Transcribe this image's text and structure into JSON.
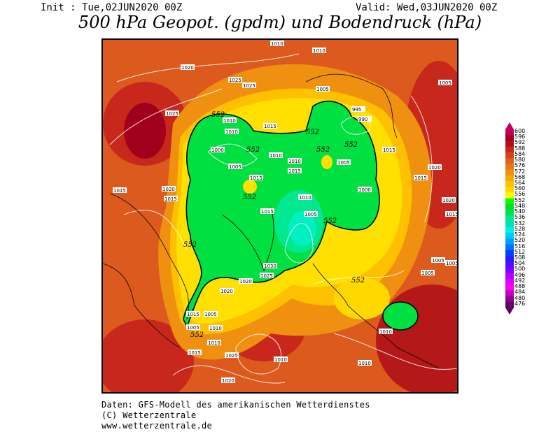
{
  "header": {
    "init": "Init : Tue,02JUN2020 00Z",
    "valid": "Valid: Wed,03JUN2020 00Z",
    "title": "500 hPa Geopot. (gpdm) und Bodendruck (hPa)"
  },
  "colorbar": {
    "labels": [
      "600",
      "596",
      "592",
      "588",
      "584",
      "580",
      "576",
      "572",
      "568",
      "564",
      "560",
      "556",
      "552",
      "548",
      "540",
      "536",
      "532",
      "528",
      "524",
      "520",
      "516",
      "512",
      "508",
      "504",
      "500",
      "496",
      "492",
      "488",
      "484",
      "480",
      "476"
    ],
    "colors": [
      "#c0005a",
      "#a0001c",
      "#b40f18",
      "#c8281c",
      "#d4421e",
      "#e0601e",
      "#e87818",
      "#f09010",
      "#f8a800",
      "#ffc000",
      "#ffd800",
      "#ffff00",
      "#00ff00",
      "#00e020",
      "#00e050",
      "#00e890",
      "#00e0b0",
      "#00f0e0",
      "#00c8ff",
      "#00a0ff",
      "#0070ff",
      "#0040ff",
      "#2020ff",
      "#5010ff",
      "#8000ff",
      "#b000ff",
      "#e000ff",
      "#ff00e0",
      "#c000c0",
      "#900090",
      "#600060"
    ]
  },
  "map": {
    "pressure_labels": [
      "1010",
      "1010",
      "1020",
      "1025",
      "1025",
      "1005",
      "995",
      "990",
      "1010",
      "1025",
      "1015",
      "1010",
      "1000",
      "1005",
      "1010",
      "1015",
      "1015",
      "1010",
      "1005",
      "1000",
      "1015",
      "1020",
      "1015",
      "1010",
      "1015",
      "1005",
      "1030",
      "1025",
      "1020",
      "1020",
      "1015",
      "1005",
      "1005",
      "1010",
      "1010",
      "1015",
      "1025",
      "1010",
      "1020",
      "1010",
      "1010",
      "1015",
      "1005",
      "1020",
      "1015",
      "1020",
      "1015",
      "1005",
      "1005",
      "1005"
    ],
    "contour_552_labels": [
      "552",
      "552",
      "552",
      "552",
      "552",
      "552",
      "552",
      "552",
      "552",
      "552"
    ]
  },
  "footer": {
    "line1": "Daten: GFS-Modell des amerikanischen Wetterdienstes",
    "line2": "(C) Wetterzentrale",
    "line3": "www.wetterzentrale.de"
  }
}
